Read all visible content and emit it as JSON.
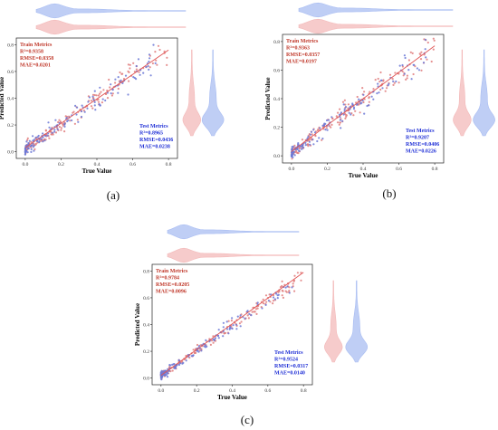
{
  "colors": {
    "train": "#e07c7c",
    "test": "#6b78d6",
    "train_text": "#c0392b",
    "test_text": "#1f2fd6",
    "train_violin": "#f3b9b9",
    "test_violin": "#a9bdf2",
    "fit_line": "#e05555"
  },
  "chart_data": [
    {
      "type": "scatter",
      "panel_label": "(a)",
      "xlabel": "True Value",
      "ylabel": "Predicted Value",
      "xlim": [
        -0.05,
        0.85
      ],
      "ylim": [
        -0.05,
        0.85
      ],
      "xticks": [
        "0.0",
        "0.2",
        "0.4",
        "0.6",
        "0.8"
      ],
      "yticks": [
        "0.0",
        "0.2",
        "0.4",
        "0.6",
        "0.8"
      ],
      "fit_line": [
        [
          0.0,
          0.03
        ],
        [
          0.8,
          0.76
        ]
      ],
      "train_metrics": [
        "Train Metrics",
        "R²=0.9358",
        "RMSE=0.0358",
        "MAE=0.0201"
      ],
      "test_metrics": [
        "Test Metrics",
        "R²=0.8965",
        "RMSE=0.0436",
        "MAE=0.0238"
      ],
      "series": [
        {
          "name": "Train",
          "seed": 11,
          "n": 170,
          "noise": 0.045
        },
        {
          "name": "Test",
          "seed": 29,
          "n": 150,
          "noise": 0.05
        }
      ]
    },
    {
      "type": "scatter",
      "panel_label": "(b)",
      "xlabel": "True Value",
      "ylabel": "Predicted Value",
      "xlim": [
        -0.05,
        0.85
      ],
      "ylim": [
        -0.05,
        0.85
      ],
      "xticks": [
        "0.0",
        "0.2",
        "0.4",
        "0.6",
        "0.8"
      ],
      "yticks": [
        "0.0",
        "0.2",
        "0.4",
        "0.6",
        "0.8"
      ],
      "fit_line": [
        [
          0.0,
          0.03
        ],
        [
          0.8,
          0.77
        ]
      ],
      "train_metrics": [
        "Train Metrics",
        "R²=0.9363",
        "RMSE=0.0357",
        "MAE=0.0197"
      ],
      "test_metrics": [
        "Test Metrics",
        "R²=0.9207",
        "RMSE=0.0406",
        "MAE=0.0226"
      ],
      "series": [
        {
          "name": "Train",
          "seed": 41,
          "n": 180,
          "noise": 0.05
        },
        {
          "name": "Test",
          "seed": 53,
          "n": 150,
          "noise": 0.045
        }
      ]
    },
    {
      "type": "scatter",
      "panel_label": "(c)",
      "xlabel": "True Value",
      "ylabel": "Predicted Value",
      "xlim": [
        -0.05,
        0.85
      ],
      "ylim": [
        -0.05,
        0.85
      ],
      "xticks": [
        "0.0",
        "0.2",
        "0.4",
        "0.6",
        "0.8"
      ],
      "yticks": [
        "0.0",
        "0.2",
        "0.4",
        "0.6",
        "0.8"
      ],
      "fit_line": [
        [
          0.0,
          0.02
        ],
        [
          0.8,
          0.79
        ]
      ],
      "train_metrics": [
        "Train Metrics",
        "R²=0.9784",
        "RMSE=0.0205",
        "MAE=0.0096"
      ],
      "test_metrics": [
        "Test Metrics",
        "R²=0.9524",
        "RMSE=0.0317",
        "MAE=0.0140"
      ],
      "series": [
        {
          "name": "Train",
          "seed": 67,
          "n": 180,
          "noise": 0.025
        },
        {
          "name": "Test",
          "seed": 83,
          "n": 150,
          "noise": 0.03
        }
      ]
    }
  ]
}
